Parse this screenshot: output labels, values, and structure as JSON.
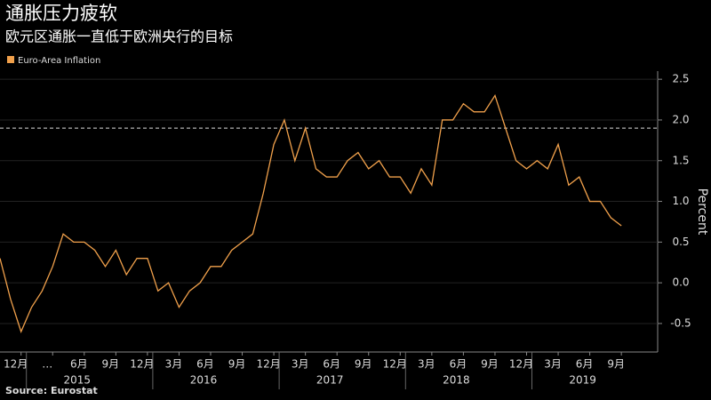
{
  "chart_data": {
    "type": "line",
    "title": "通胀压力疲软",
    "subtitle": "欧元区通胀一直低于欧洲央行的目标",
    "source": "Source: Eurostat",
    "y_axis_label": "Percent",
    "categories": [
      null,
      null,
      "12月",
      null,
      null,
      "…",
      null,
      null,
      "6月",
      null,
      null,
      "9月",
      null,
      null,
      "12月",
      null,
      null,
      "3月",
      null,
      null,
      "6月",
      null,
      null,
      "9月",
      null,
      null,
      "12月",
      null,
      null,
      "3月",
      null,
      null,
      "6月",
      null,
      null,
      "9月",
      null,
      null,
      "12月",
      null,
      null,
      "3月",
      null,
      null,
      "6月",
      null,
      null,
      "9月",
      null,
      null,
      "12月",
      null,
      null,
      "3月",
      null,
      null,
      "6月",
      null,
      null,
      "9月"
    ],
    "year_labels": [
      "2015",
      "2016",
      "2017",
      "2018",
      "2019"
    ],
    "series": [
      {
        "name": "Euro-Area Inflation",
        "color": "#f0a04b",
        "values": [
          0.3,
          -0.2,
          -0.6,
          -0.3,
          -0.1,
          0.2,
          0.6,
          0.5,
          0.5,
          0.4,
          0.2,
          0.4,
          0.1,
          0.3,
          0.3,
          -0.1,
          0.0,
          -0.3,
          -0.1,
          0.0,
          0.2,
          0.2,
          0.4,
          0.5,
          0.6,
          1.1,
          1.7,
          2.0,
          1.5,
          1.9,
          1.4,
          1.3,
          1.3,
          1.5,
          1.6,
          1.4,
          1.5,
          1.3,
          1.3,
          1.1,
          1.4,
          1.2,
          2.0,
          2.0,
          2.2,
          2.1,
          2.1,
          2.3,
          1.9,
          1.5,
          1.4,
          1.5,
          1.4,
          1.7,
          1.2,
          1.3,
          1.0,
          1.0,
          0.8,
          0.7
        ]
      }
    ],
    "target_line": 1.9,
    "ylim": [
      -0.85,
      2.6
    ],
    "yticks": [
      -0.5,
      {
        "value": 0,
        "label": "0.0"
      },
      0.5,
      {
        "value": 1,
        "label": "1.0"
      },
      1.5,
      {
        "value": 2,
        "label": "2.0"
      },
      2.5
    ],
    "grid": true
  }
}
